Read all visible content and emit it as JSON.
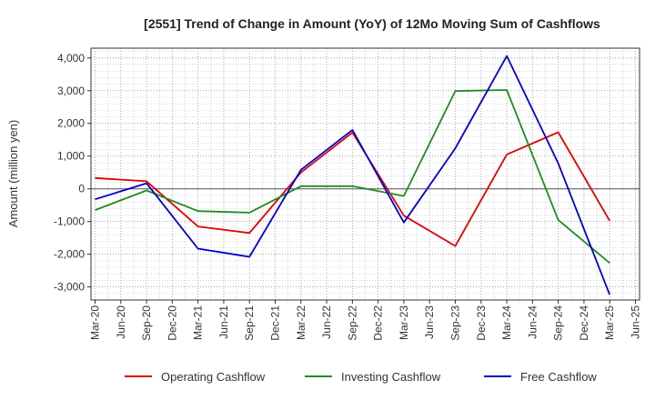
{
  "chart_data": {
    "type": "line",
    "title": "[2551]  Trend of Change in Amount (YoY) of 12Mo Moving Sum of Cashflows",
    "xlabel": "",
    "ylabel": "Amount (million yen)",
    "ylim": [
      -3400,
      4300
    ],
    "yticks": [
      4000,
      3000,
      2000,
      1000,
      0,
      -1000,
      -2000,
      -3000
    ],
    "ytick_labels": [
      "4,000",
      "3,000",
      "2,000",
      "1,000",
      "0",
      "-1,000",
      "-2,000",
      "-3,000"
    ],
    "categories": [
      "Mar-20",
      "Jun-20",
      "Sep-20",
      "Dec-20",
      "Mar-21",
      "Jun-21",
      "Sep-21",
      "Dec-21",
      "Mar-22",
      "Jun-22",
      "Sep-22",
      "Dec-22",
      "Mar-23",
      "Jun-23",
      "Sep-23",
      "Dec-23",
      "Mar-24",
      "Jun-24",
      "Sep-24",
      "Dec-24",
      "Mar-25",
      "Jun-25"
    ],
    "grid": true,
    "legend_position": "bottom",
    "series": [
      {
        "name": "Operating Cashflow",
        "color": "#e00000",
        "values": [
          330,
          null,
          230,
          null,
          -1150,
          null,
          -1350,
          null,
          500,
          null,
          1720,
          null,
          -820,
          null,
          -1750,
          null,
          1050,
          null,
          1730,
          null,
          -980,
          null
        ]
      },
      {
        "name": "Investing Cashflow",
        "color": "#228b22",
        "values": [
          -650,
          null,
          -50,
          null,
          -680,
          null,
          -730,
          null,
          80,
          null,
          80,
          null,
          -220,
          null,
          2990,
          null,
          3020,
          null,
          -950,
          null,
          -2270,
          null
        ]
      },
      {
        "name": "Free Cashflow",
        "color": "#0000cc",
        "values": [
          -320,
          null,
          170,
          null,
          -1830,
          null,
          -2080,
          null,
          580,
          null,
          1800,
          null,
          -1030,
          null,
          1240,
          null,
          4060,
          null,
          780,
          null,
          -3240,
          null
        ]
      }
    ]
  }
}
